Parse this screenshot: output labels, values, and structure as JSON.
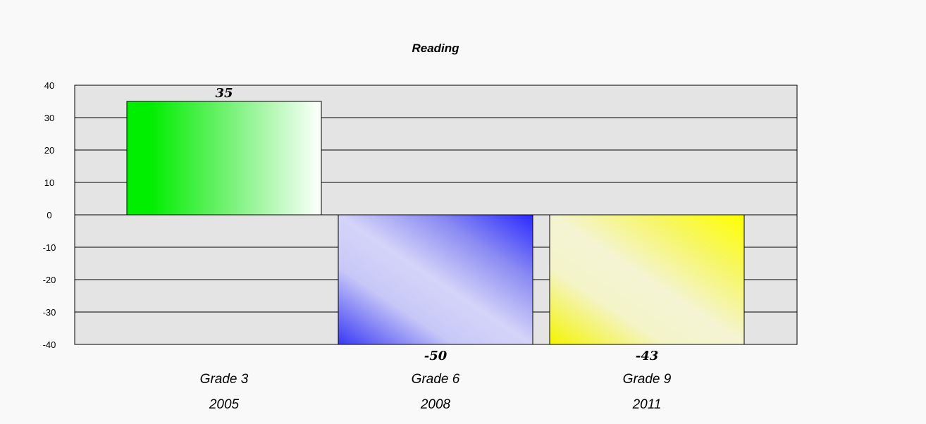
{
  "chart_data": {
    "type": "bar",
    "title": "Reading",
    "xlabel": "",
    "ylabel": "",
    "ylim": [
      -40,
      40
    ],
    "yticks": [
      40,
      30,
      20,
      10,
      0,
      -10,
      -20,
      -30,
      -40
    ],
    "grid": true,
    "categories": [
      {
        "line1": "Grade 3",
        "line2": "2005"
      },
      {
        "line1": "Grade 6",
        "line2": "2008"
      },
      {
        "line1": "Grade 9",
        "line2": "2011"
      }
    ],
    "values": [
      35,
      -50,
      -43
    ],
    "data_labels": [
      "35",
      "-50",
      "-43"
    ],
    "colors": [
      "#00ee00",
      "#3333ff",
      "#ffff00"
    ],
    "plot_background": "#e4e4e4",
    "page_background": "#f9f9f9"
  }
}
